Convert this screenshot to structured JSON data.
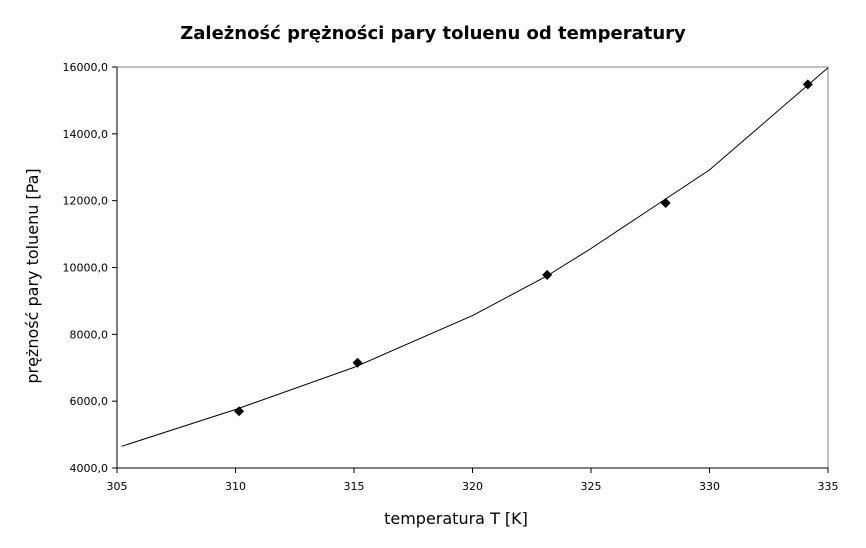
{
  "chart_data": {
    "type": "scatter",
    "title": "Zależność prężności pary toluenu od temperatury",
    "xlabel": "temperatura T [K]",
    "ylabel": "prężność pary toluenu [Pa]",
    "xlim": [
      305,
      335
    ],
    "ylim": [
      4000,
      16000
    ],
    "x_ticks": [
      "305",
      "310",
      "315",
      "320",
      "325",
      "330",
      "335"
    ],
    "y_ticks": [
      "4000,0",
      "6000,0",
      "8000,0",
      "10000,0",
      "12000,0",
      "14000,0",
      "16000,0"
    ],
    "grid": false,
    "legend": "none",
    "series": [
      {
        "marker": "diamond",
        "x": [
          310.15,
          315.15,
          323.15,
          328.15,
          334.15
        ],
        "y": [
          5700,
          7150,
          9780,
          11930,
          15480
        ]
      }
    ],
    "trend_line": {
      "x": [
        305.2,
        310,
        315,
        320,
        323.1,
        325,
        330,
        335
      ],
      "y": [
        4650,
        5750,
        7010,
        8560,
        9730,
        10570,
        12920,
        15980
      ]
    }
  }
}
